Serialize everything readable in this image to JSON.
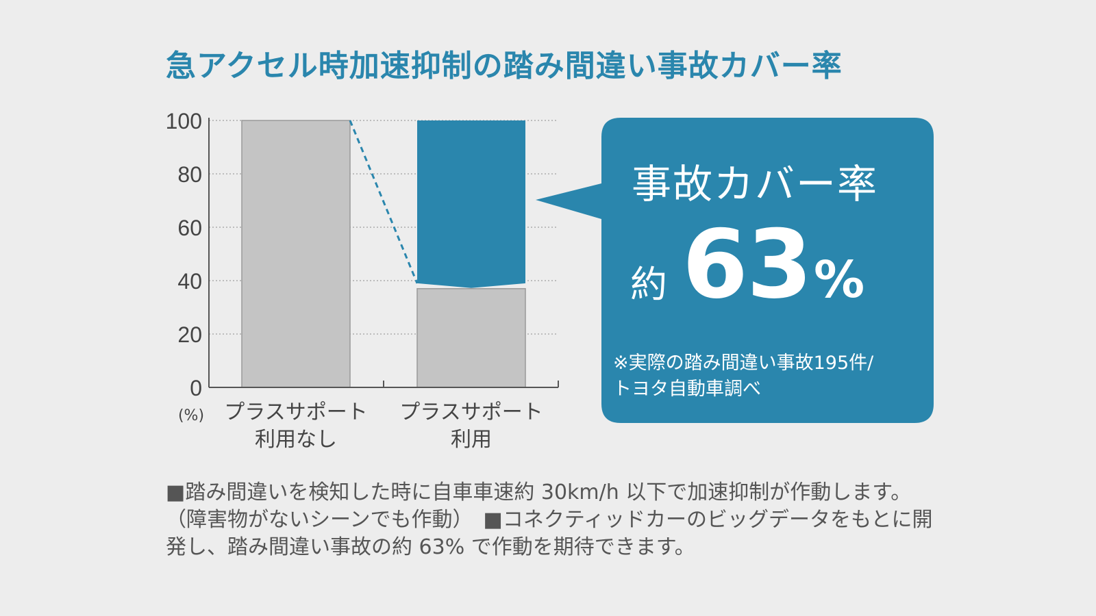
{
  "title": "急アクセル時加速抑制の踏み間違い事故カバー率",
  "colors": {
    "title": "#2a86ad",
    "accent": "#2a86ad",
    "bar_gray": "#c4c4c4",
    "bar_outline": "#999999",
    "axis": "#555555",
    "text": "#444444",
    "description": "#555555"
  },
  "chart_data": {
    "type": "bar",
    "categories": [
      "プラスサポート\n利用なし",
      "プラスサポート\n利用"
    ],
    "series": [
      {
        "values": [
          100,
          37
        ]
      }
    ],
    "covered": {
      "category_index": 1,
      "from": 39,
      "to": 100
    },
    "ylim": [
      0,
      100
    ],
    "yticks": [
      0,
      20,
      40,
      60,
      80,
      100
    ],
    "unit_label": "(%)",
    "grid": true,
    "xlabel": "",
    "ylabel": ""
  },
  "callout": {
    "label": "事故カバー率",
    "prefix": "約",
    "number": "63",
    "unit": "%",
    "note": "※実際の踏み間違い事故195件/\nトヨタ自動車調べ"
  },
  "description": "■踏み間違いを検知した時に自車車速約 30km/h 以下で加速抑制が作動します。（障害物がないシーンでも作動）　■コネクティッドカーのビッグデータをもとに開発し、踏み間違い事故の約 63% で作動を期待できます。"
}
